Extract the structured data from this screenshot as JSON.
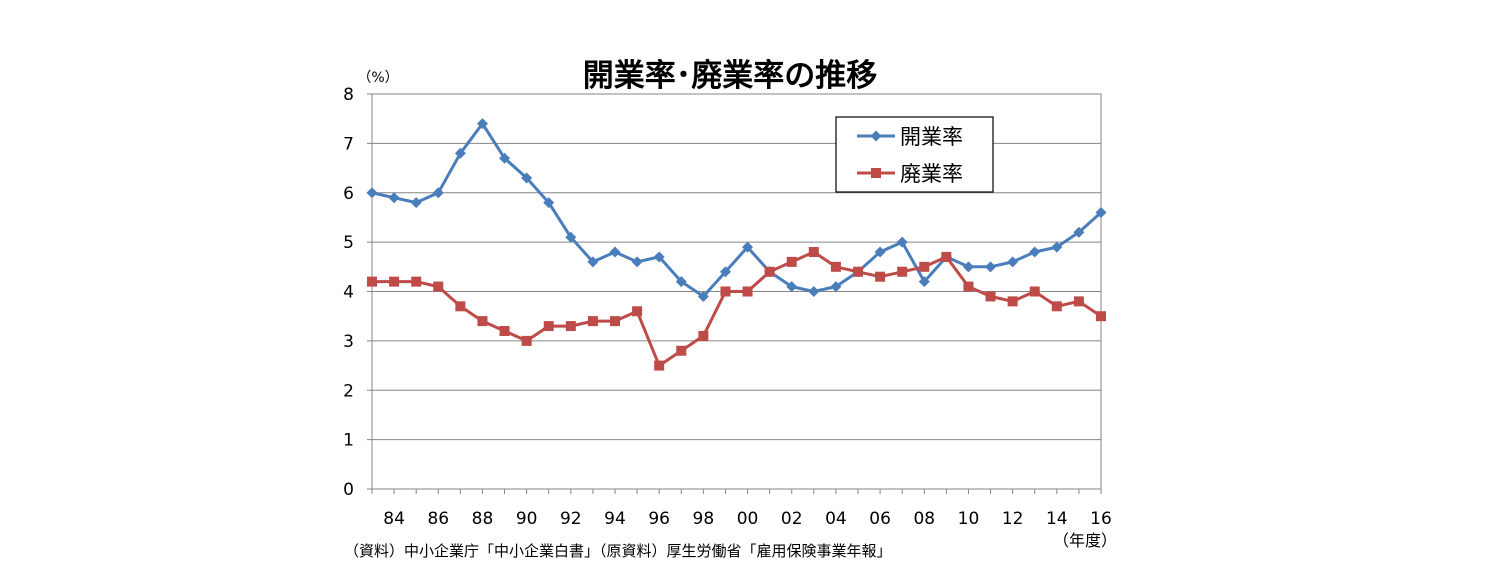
{
  "chart_data": {
    "type": "line",
    "title": "開業率･廃業率の推移",
    "ylabel": "（%）",
    "xlabel": "（年度）",
    "source_note": "（資料）中小企業庁「中小企業白書」（原資料）厚生労働省「雇用保険事業年報」",
    "ylim": [
      0,
      8
    ],
    "yticks": [
      "0",
      "1",
      "2",
      "3",
      "4",
      "5",
      "6",
      "7",
      "8"
    ],
    "x_start": 1983,
    "x_end": 2016,
    "xticks": [
      {
        "year": 1984,
        "label": "84"
      },
      {
        "year": 1986,
        "label": "86"
      },
      {
        "year": 1988,
        "label": "88"
      },
      {
        "year": 1990,
        "label": "90"
      },
      {
        "year": 1992,
        "label": "92"
      },
      {
        "year": 1994,
        "label": "94"
      },
      {
        "year": 1996,
        "label": "96"
      },
      {
        "year": 1998,
        "label": "98"
      },
      {
        "year": 2000,
        "label": "00"
      },
      {
        "year": 2002,
        "label": "02"
      },
      {
        "year": 2004,
        "label": "04"
      },
      {
        "year": 2006,
        "label": "06"
      },
      {
        "year": 2008,
        "label": "08"
      },
      {
        "year": 2010,
        "label": "10"
      },
      {
        "year": 2012,
        "label": "12"
      },
      {
        "year": 2014,
        "label": "14"
      },
      {
        "year": 2016,
        "label": "16"
      }
    ],
    "grid": "horizontal",
    "legend_position": "top-right",
    "series": [
      {
        "name": "開業率",
        "color": "#4a7ebb",
        "marker": "diamond",
        "points": [
          [
            1983,
            6.0
          ],
          [
            1984,
            5.9
          ],
          [
            1985,
            5.8
          ],
          [
            1986,
            6.0
          ],
          [
            1987,
            6.8
          ],
          [
            1988,
            7.4
          ],
          [
            1989,
            6.7
          ],
          [
            1990,
            6.3
          ],
          [
            1991,
            5.8
          ],
          [
            1992,
            5.1
          ],
          [
            1993,
            4.6
          ],
          [
            1994,
            4.8
          ],
          [
            1995,
            4.6
          ],
          [
            1996,
            4.7
          ],
          [
            1997,
            4.2
          ],
          [
            1998,
            3.9
          ],
          [
            1999,
            4.4
          ],
          [
            2000,
            4.9
          ],
          [
            2001,
            4.4
          ],
          [
            2002,
            4.1
          ],
          [
            2003,
            4.0
          ],
          [
            2004,
            4.1
          ],
          [
            2005,
            4.4
          ],
          [
            2006,
            4.8
          ],
          [
            2007,
            5.0
          ],
          [
            2008,
            4.2
          ],
          [
            2009,
            4.7
          ],
          [
            2010,
            4.5
          ],
          [
            2011,
            4.5
          ],
          [
            2012,
            4.6
          ],
          [
            2013,
            4.8
          ],
          [
            2014,
            4.9
          ],
          [
            2015,
            5.2
          ],
          [
            2016,
            5.6
          ]
        ]
      },
      {
        "name": "廃業率",
        "color": "#be4b48",
        "marker": "square",
        "points": [
          [
            1983,
            4.2
          ],
          [
            1984,
            4.2
          ],
          [
            1985,
            4.2
          ],
          [
            1986,
            4.1
          ],
          [
            1987,
            3.7
          ],
          [
            1988,
            3.4
          ],
          [
            1989,
            3.2
          ],
          [
            1990,
            3.0
          ],
          [
            1991,
            3.3
          ],
          [
            1992,
            3.3
          ],
          [
            1993,
            3.4
          ],
          [
            1994,
            3.4
          ],
          [
            1995,
            3.6
          ],
          [
            1996,
            2.5
          ],
          [
            1997,
            2.8
          ],
          [
            1998,
            3.1
          ],
          [
            1999,
            4.0
          ],
          [
            2000,
            4.0
          ],
          [
            2001,
            4.4
          ],
          [
            2002,
            4.6
          ],
          [
            2003,
            4.8
          ],
          [
            2004,
            4.5
          ],
          [
            2005,
            4.4
          ],
          [
            2006,
            4.3
          ],
          [
            2007,
            4.4
          ],
          [
            2008,
            4.5
          ],
          [
            2009,
            4.7
          ],
          [
            2010,
            4.1
          ],
          [
            2011,
            3.9
          ],
          [
            2012,
            3.8
          ],
          [
            2013,
            4.0
          ],
          [
            2014,
            3.7
          ],
          [
            2015,
            3.8
          ],
          [
            2016,
            3.5
          ]
        ]
      }
    ]
  }
}
